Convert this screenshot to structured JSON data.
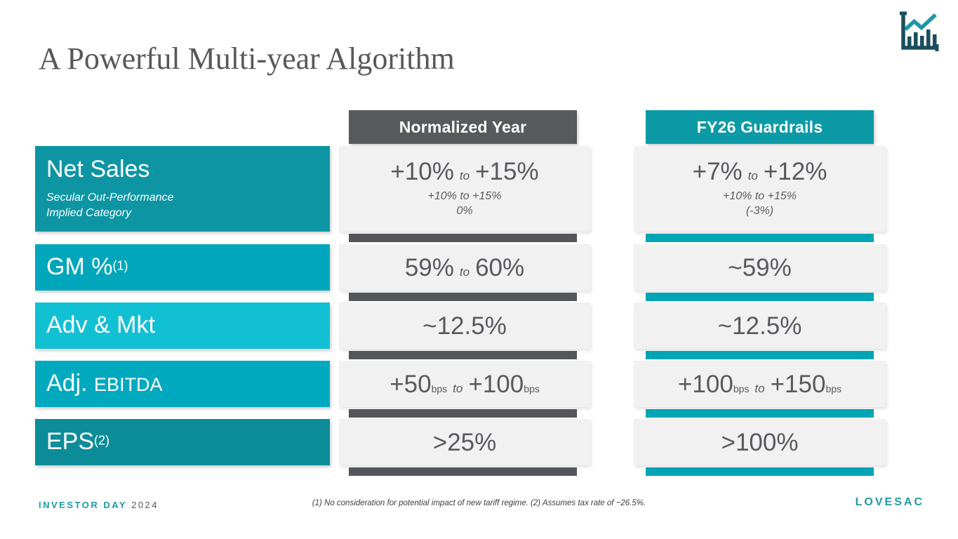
{
  "slide": {
    "title": "A Powerful Multi-year Algorithm",
    "footnote": "(1) No consideration for potential impact of new tariff regime. (2) Assumes tax rate of ~26.5%.",
    "footer_left": {
      "label": "INVESTOR DAY",
      "year": "2024"
    },
    "footer_right": {
      "brand": "LOVESAC"
    }
  },
  "icons": {
    "top_right": "bar-chart-trend-icon"
  },
  "colors": {
    "header_normalized_bg": "#58595B",
    "header_fy26_bg": "#0C9AA6",
    "accent_normalized": "#555659",
    "accent_fy26": "#00A5B5",
    "cell_bg": "#F1F1F2",
    "value_text": "#58595C",
    "title_text": "#57585A",
    "brand_teal": "#1E9BA6",
    "footer_year_gray": "#58595B",
    "icon_dark": "#1B4E5C",
    "icon_teal": "#1C97A6"
  },
  "columns": [
    {
      "id": "normalized",
      "label": "Normalized Year"
    },
    {
      "id": "fy26",
      "label": "FY26 Guardrails"
    }
  ],
  "rows": [
    {
      "label_parts": [
        {
          "t": "Net Sales",
          "s": "lg"
        }
      ],
      "sublabel": [
        "Secular Out-Performance",
        "Implied Category"
      ],
      "label_bg": "#0E95A3",
      "cells": {
        "normalized": {
          "parts": [
            {
              "t": "+10%",
              "s": "v"
            },
            {
              "t": "to",
              "s": "to"
            },
            {
              "t": "+15%",
              "s": "v"
            }
          ],
          "sub": [
            "+10% to +15%",
            "0%"
          ]
        },
        "fy26": {
          "parts": [
            {
              "t": "+7%",
              "s": "v"
            },
            {
              "t": "to",
              "s": "to"
            },
            {
              "t": "+12%",
              "s": "v"
            }
          ],
          "sub": [
            "+10% to +15%",
            "(-3%)"
          ]
        }
      }
    },
    {
      "label_parts": [
        {
          "t": "GM %",
          "s": "lg"
        },
        {
          "t": "(1)",
          "s": "sup"
        }
      ],
      "label_bg": "#00A7BC",
      "cells": {
        "normalized": {
          "parts": [
            {
              "t": "59%",
              "s": "v"
            },
            {
              "t": "to",
              "s": "to"
            },
            {
              "t": "60%",
              "s": "v"
            }
          ]
        },
        "fy26": {
          "parts": [
            {
              "t": "~59%",
              "s": "v"
            }
          ]
        }
      }
    },
    {
      "label_parts": [
        {
          "t": "Adv & Mkt",
          "s": "lg"
        }
      ],
      "label_bg": "#12C0D4",
      "cells": {
        "normalized": {
          "parts": [
            {
              "t": "~12.5%",
              "s": "v"
            }
          ]
        },
        "fy26": {
          "parts": [
            {
              "t": "~12.5%",
              "s": "v"
            }
          ]
        }
      }
    },
    {
      "label_parts": [
        {
          "t": "Adj. ",
          "s": "lg"
        },
        {
          "t": "EBITDA",
          "s": "md"
        }
      ],
      "label_bg": "#00A9BE",
      "cells": {
        "normalized": {
          "parts": [
            {
              "t": "+50",
              "s": "v"
            },
            {
              "t": "bps",
              "s": "bps"
            },
            {
              "t": "to",
              "s": "to"
            },
            {
              "t": "+100",
              "s": "v"
            },
            {
              "t": "bps",
              "s": "bps"
            }
          ]
        },
        "fy26": {
          "parts": [
            {
              "t": "+100",
              "s": "v"
            },
            {
              "t": "bps",
              "s": "bps"
            },
            {
              "t": "to",
              "s": "to"
            },
            {
              "t": "+150",
              "s": "v"
            },
            {
              "t": "bps",
              "s": "bps"
            }
          ]
        }
      }
    },
    {
      "label_parts": [
        {
          "t": "EPS",
          "s": "lg"
        },
        {
          "t": "(2)",
          "s": "sup"
        }
      ],
      "label_bg": "#0C8C99",
      "cells": {
        "normalized": {
          "parts": [
            {
              "t": ">25%",
              "s": "v"
            }
          ]
        },
        "fy26": {
          "parts": [
            {
              "t": ">100%",
              "s": "v"
            }
          ]
        }
      }
    }
  ]
}
